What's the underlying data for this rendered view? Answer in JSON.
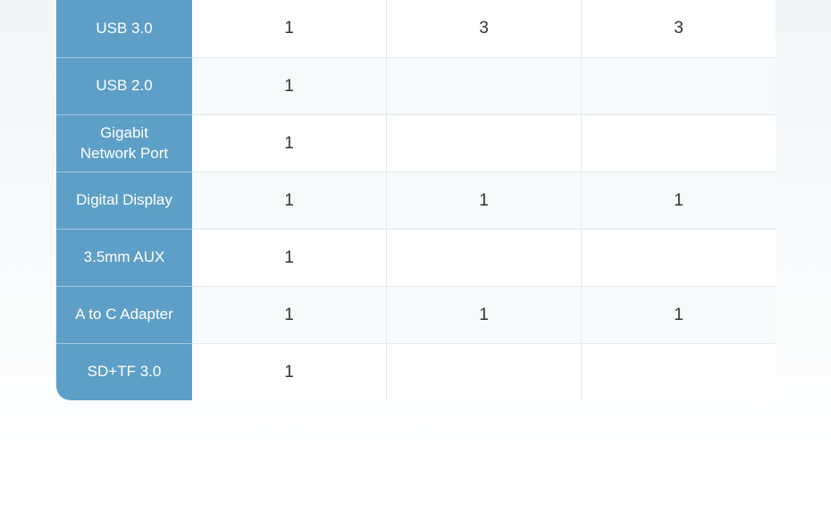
{
  "table": {
    "header_bg_color": "#5e9fc7",
    "header_text_color": "#ffffff",
    "cell_text_color": "#333333",
    "border_color": "#e5e9ec",
    "header_border_color": "#a3c8de",
    "row_odd_bg": "#ffffff",
    "row_even_bg": "#f7fafb",
    "page_bg_top": "#f2f6f8",
    "page_bg_bottom": "#ffffff",
    "header_fontsize": 17,
    "cell_fontsize": 19,
    "rows": [
      {
        "label": "USB 3.0",
        "cells": [
          "1",
          "3",
          "3"
        ]
      },
      {
        "label": "USB 2.0",
        "cells": [
          "1",
          "",
          ""
        ]
      },
      {
        "label": "Gigabit\nNetwork Port",
        "cells": [
          "1",
          "",
          ""
        ]
      },
      {
        "label": "Digital Display",
        "cells": [
          "1",
          "1",
          "1"
        ]
      },
      {
        "label": "3.5mm AUX",
        "cells": [
          "1",
          "",
          ""
        ]
      },
      {
        "label": "A to C Adapter",
        "cells": [
          "1",
          "1",
          "1"
        ]
      },
      {
        "label": "SD+TF 3.0",
        "cells": [
          "1",
          "",
          ""
        ]
      }
    ]
  }
}
